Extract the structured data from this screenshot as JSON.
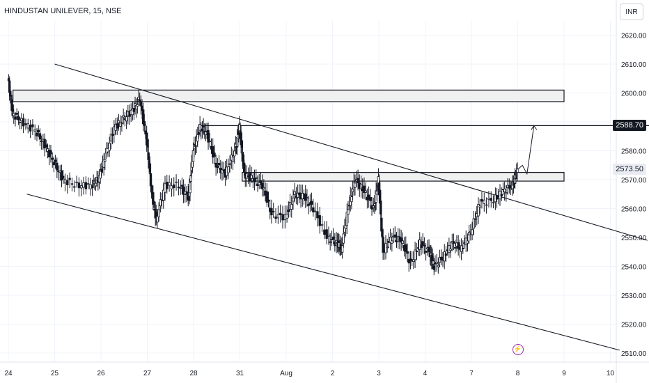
{
  "chart_data": {
    "type": "line",
    "title": "HINDUSTAN UNILEVER, 15, NSE",
    "currency": "INR",
    "x_ticks": [
      "24",
      "25",
      "26",
      "27",
      "28",
      "31",
      "Aug",
      "2",
      "3",
      "4",
      "7",
      "8",
      "9",
      "10"
    ],
    "y_ticks": [
      "2620.00",
      "2610.00",
      "2600.00",
      "2590.00",
      "2580.00",
      "2570.00",
      "2560.00",
      "2550.00",
      "2540.00",
      "2530.00",
      "2520.00",
      "2510.00"
    ],
    "ylim": [
      2508,
      2626
    ],
    "x_range": [
      0,
      13.9
    ],
    "grid": true,
    "price_markers": [
      {
        "label": "2588.70",
        "value": 2588.7,
        "style": "dark"
      },
      {
        "label": "2573.50",
        "value": 2573.5,
        "style": "light"
      }
    ],
    "price_series": [
      {
        "x": 0.0,
        "y": 2605
      },
      {
        "x": 0.1,
        "y": 2593
      },
      {
        "x": 0.3,
        "y": 2590
      },
      {
        "x": 0.6,
        "y": 2587
      },
      {
        "x": 0.8,
        "y": 2582
      },
      {
        "x": 1.0,
        "y": 2576
      },
      {
        "x": 1.2,
        "y": 2570
      },
      {
        "x": 1.5,
        "y": 2568
      },
      {
        "x": 1.8,
        "y": 2568
      },
      {
        "x": 1.95,
        "y": 2570
      },
      {
        "x": 2.1,
        "y": 2578
      },
      {
        "x": 2.3,
        "y": 2588
      },
      {
        "x": 2.5,
        "y": 2591
      },
      {
        "x": 2.7,
        "y": 2594
      },
      {
        "x": 2.85,
        "y": 2598
      },
      {
        "x": 3.0,
        "y": 2583
      },
      {
        "x": 3.1,
        "y": 2566
      },
      {
        "x": 3.2,
        "y": 2556
      },
      {
        "x": 3.4,
        "y": 2568
      },
      {
        "x": 3.7,
        "y": 2568
      },
      {
        "x": 3.9,
        "y": 2564
      },
      {
        "x": 4.0,
        "y": 2580
      },
      {
        "x": 4.15,
        "y": 2588
      },
      {
        "x": 4.3,
        "y": 2586
      },
      {
        "x": 4.5,
        "y": 2575
      },
      {
        "x": 4.7,
        "y": 2572
      },
      {
        "x": 4.9,
        "y": 2580
      },
      {
        "x": 5.0,
        "y": 2588
      },
      {
        "x": 5.1,
        "y": 2572
      },
      {
        "x": 5.3,
        "y": 2570
      },
      {
        "x": 5.5,
        "y": 2568
      },
      {
        "x": 5.7,
        "y": 2558
      },
      {
        "x": 6.0,
        "y": 2557
      },
      {
        "x": 6.2,
        "y": 2565
      },
      {
        "x": 6.4,
        "y": 2564
      },
      {
        "x": 6.6,
        "y": 2560
      },
      {
        "x": 6.9,
        "y": 2550
      },
      {
        "x": 7.1,
        "y": 2548
      },
      {
        "x": 7.2,
        "y": 2546
      },
      {
        "x": 7.35,
        "y": 2560
      },
      {
        "x": 7.5,
        "y": 2570
      },
      {
        "x": 7.7,
        "y": 2566
      },
      {
        "x": 7.9,
        "y": 2560
      },
      {
        "x": 8.0,
        "y": 2570
      },
      {
        "x": 8.1,
        "y": 2545
      },
      {
        "x": 8.3,
        "y": 2550
      },
      {
        "x": 8.5,
        "y": 2549
      },
      {
        "x": 8.7,
        "y": 2541
      },
      {
        "x": 8.9,
        "y": 2548
      },
      {
        "x": 9.1,
        "y": 2545
      },
      {
        "x": 9.2,
        "y": 2540
      },
      {
        "x": 9.4,
        "y": 2543
      },
      {
        "x": 9.6,
        "y": 2548
      },
      {
        "x": 9.8,
        "y": 2546
      },
      {
        "x": 10.0,
        "y": 2552
      },
      {
        "x": 10.2,
        "y": 2562
      },
      {
        "x": 10.5,
        "y": 2563
      },
      {
        "x": 10.7,
        "y": 2566
      },
      {
        "x": 10.9,
        "y": 2568
      },
      {
        "x": 11.0,
        "y": 2573.5
      }
    ],
    "zones": [
      {
        "x0": 0.1,
        "x1": 12.0,
        "y0": 2597,
        "y1": 2601
      },
      {
        "x0": 5.05,
        "x1": 12.0,
        "y0": 2569.5,
        "y1": 2572.5
      }
    ],
    "target_level": {
      "x0": 4.15,
      "x1": 13.9,
      "value": 2588.7
    },
    "channel_upper": {
      "x0": 1.0,
      "y0": 2610,
      "x1": 13.8,
      "y1": 2549
    },
    "channel_lower": {
      "x0": 0.4,
      "y0": 2565,
      "x1": 13.2,
      "y1": 2511
    },
    "projection": [
      {
        "x": 11.0,
        "y": 2573.5
      },
      {
        "x": 11.1,
        "y": 2575
      },
      {
        "x": 11.2,
        "y": 2572
      },
      {
        "x": 11.35,
        "y": 2588.7
      }
    ],
    "event_marker": {
      "x": 11.0,
      "y": 2511,
      "icon": "lightning-bolt-icon"
    }
  }
}
